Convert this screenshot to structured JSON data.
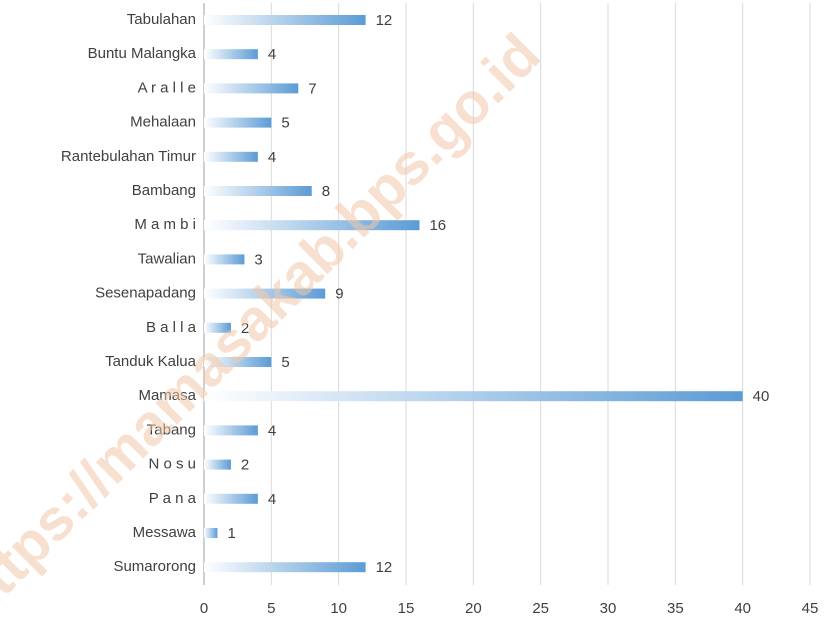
{
  "chart_data": {
    "type": "bar",
    "orientation": "horizontal",
    "categories": [
      "Tabulahan",
      "Buntu Malangka",
      "A r a l l e",
      "Mehalaan",
      "Rantebulahan Timur",
      "Bambang",
      "M a m b i",
      "Tawalian",
      "Sesenapadang",
      "B a l l a",
      "Tanduk Kalua",
      "Mamasa",
      "Tabang",
      "N o s u",
      "P a n a",
      "Messawa",
      "Sumarorong"
    ],
    "values": [
      12,
      4,
      7,
      5,
      4,
      8,
      16,
      3,
      9,
      2,
      5,
      40,
      4,
      2,
      4,
      1,
      12
    ],
    "color": "#5b9bd5",
    "xlim": [
      0,
      45
    ],
    "xticks": [
      0,
      5,
      10,
      15,
      20,
      25,
      30,
      35,
      40,
      45
    ],
    "grid": true,
    "watermark": "https://mamasakab.bps.go.id"
  }
}
